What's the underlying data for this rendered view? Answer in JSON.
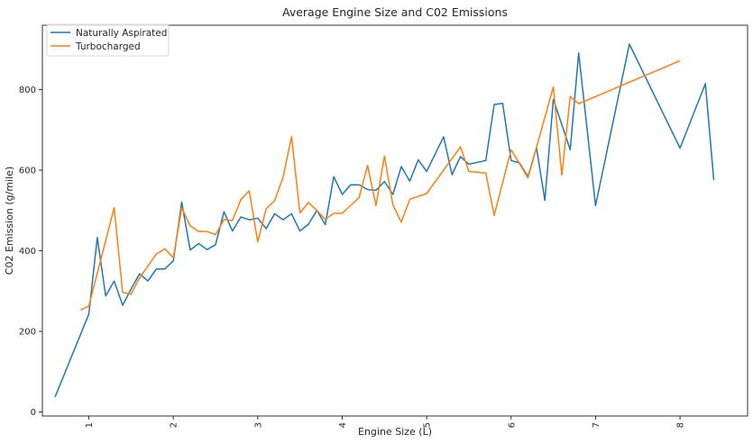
{
  "chart_data": {
    "type": "line",
    "title": "Average Engine Size and C02 Emissions",
    "xlabel": "Engine Size (L)",
    "ylabel": "C02 Emission (g/mile)",
    "xlim": [
      0.45,
      8.8
    ],
    "ylim": [
      -10,
      960
    ],
    "xticks": [
      1,
      2,
      3,
      4,
      5,
      6,
      7,
      8
    ],
    "yticks": [
      0,
      200,
      400,
      600,
      800
    ],
    "grid": false,
    "legend_position": "top-left",
    "series": [
      {
        "name": "Naturally Aspirated",
        "color": "#1f77b4",
        "x": [
          0.6,
          1.0,
          1.1,
          1.2,
          1.3,
          1.4,
          1.5,
          1.6,
          1.7,
          1.8,
          1.9,
          2.0,
          2.1,
          2.2,
          2.3,
          2.4,
          2.5,
          2.6,
          2.7,
          2.8,
          2.9,
          3.0,
          3.1,
          3.2,
          3.3,
          3.4,
          3.5,
          3.6,
          3.7,
          3.8,
          3.9,
          4.0,
          4.1,
          4.2,
          4.3,
          4.4,
          4.5,
          4.6,
          4.7,
          4.8,
          4.9,
          5.0,
          5.2,
          5.3,
          5.4,
          5.5,
          5.7,
          5.8,
          5.9,
          6.0,
          6.1,
          6.2,
          6.3,
          6.4,
          6.5,
          6.7,
          6.8,
          7.0,
          7.4,
          8.0,
          8.3,
          8.4
        ],
        "y": [
          37,
          243,
          433,
          288,
          325,
          265,
          305,
          343,
          325,
          355,
          355,
          375,
          521,
          402,
          418,
          403,
          415,
          497,
          449,
          484,
          477,
          481,
          455,
          492,
          477,
          492,
          449,
          466,
          500,
          465,
          584,
          540,
          564,
          564,
          552,
          550,
          572,
          540,
          609,
          573,
          626,
          597,
          683,
          589,
          634,
          615,
          624,
          763,
          766,
          624,
          618,
          584,
          656,
          525,
          776,
          651,
          891,
          512,
          913,
          655,
          815,
          576
        ]
      },
      {
        "name": "Turbocharged",
        "color": "#ff7f0e",
        "x": [
          0.9,
          1.0,
          1.3,
          1.4,
          1.5,
          1.6,
          1.7,
          1.8,
          1.9,
          2.0,
          2.1,
          2.2,
          2.3,
          2.4,
          2.5,
          2.6,
          2.7,
          2.8,
          2.9,
          3.0,
          3.1,
          3.2,
          3.3,
          3.4,
          3.5,
          3.6,
          3.7,
          3.8,
          3.9,
          4.0,
          4.2,
          4.3,
          4.4,
          4.5,
          4.6,
          4.7,
          4.8,
          5.0,
          5.4,
          5.5,
          5.7,
          5.8,
          6.0,
          6.2,
          6.5,
          6.6,
          6.7,
          6.8,
          8.0
        ],
        "y": [
          253,
          263,
          507,
          297,
          292,
          333,
          362,
          392,
          405,
          383,
          507,
          462,
          448,
          448,
          440,
          478,
          475,
          527,
          549,
          422,
          505,
          524,
          583,
          683,
          494,
          520,
          500,
          478,
          493,
          493,
          532,
          612,
          512,
          635,
          514,
          471,
          528,
          542,
          658,
          597,
          593,
          488,
          651,
          581,
          807,
          588,
          783,
          765,
          872
        ]
      }
    ]
  }
}
